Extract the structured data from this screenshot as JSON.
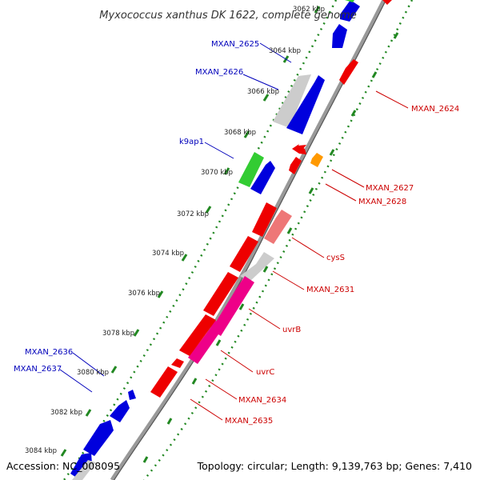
{
  "title": "Myxococcus xanthus DK 1622, complete genome",
  "accession": "Accession: NC_008095",
  "topology": "Topology: circular; Length: 9,139,763 bp; Genes: 7,410",
  "colors": {
    "blue": "#0000dd",
    "red": "#ee0000",
    "pink": "#ee0088",
    "light_red": "#ee7777",
    "gray": "#cccccc",
    "green": "#33cc33",
    "orange": "#ff9900",
    "backbone": "#888888",
    "ring_dots": "#228822",
    "label_blue": "#0000bb",
    "label_red": "#cc0000"
  },
  "ticks": [
    "3062 kbp",
    "3064 kbp",
    "3066 kbp",
    "3068 kbp",
    "3070 kbp",
    "3072 kbp",
    "3074 kbp",
    "3076 kbp",
    "3078 kbp",
    "3080 kbp",
    "3082 kbp",
    "3084 kbp"
  ],
  "labels_left": [
    "MXAN_2625",
    "MXAN_2626",
    "k9ap1",
    "MXAN_2636",
    "MXAN_2637"
  ],
  "labels_right": [
    "MXAN_2624",
    "MXAN_2627",
    "MXAN_2628",
    "cysS",
    "MXAN_2631",
    "uvrB",
    "uvrC",
    "MXAN_2634",
    "MXAN_2635"
  ]
}
